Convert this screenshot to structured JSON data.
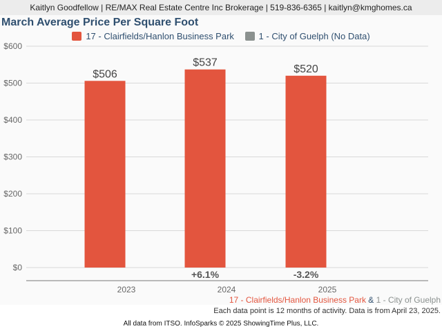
{
  "header": {
    "text": "Kaitlyn Goodfellow | RE/MAX Real Estate Centre Inc Brokerage | 519-836-6365 | kaitlyn@kmghomes.ca"
  },
  "colors": {
    "series1": "#e3553e",
    "series2": "#8b918f",
    "title": "#2f4f6f"
  },
  "footer": {
    "area1": "17 - Clairfields/Hanlon Business Park",
    "amp": " & ",
    "area2": "1 - City of Guelph",
    "note": "Each data point is 12 months of activity. Data is from April 23, 2025.",
    "credit": "All data from ITSO. InfoSparks © 2025 ShowingTime Plus, LLC."
  },
  "chart_data": {
    "type": "bar",
    "title": "March Average Price Per Square Foot",
    "categories": [
      "2023",
      "2024",
      "2025"
    ],
    "series": [
      {
        "name": "17 - Clairfields/Hanlon Business Park",
        "values": [
          506,
          537,
          520
        ],
        "labels": [
          "$506",
          "$537",
          "$520"
        ]
      },
      {
        "name": "1 - City of Guelph (No Data)",
        "values": [
          null,
          null,
          null
        ]
      }
    ],
    "changes": [
      "",
      "+6.1%",
      "-3.2%"
    ],
    "yticks": [
      0,
      100,
      200,
      300,
      400,
      500,
      600
    ],
    "ytick_labels": [
      "$0",
      "$100",
      "$200",
      "$300",
      "$400",
      "$500",
      "$600"
    ],
    "ylim": [
      0,
      600
    ],
    "xlabel": "",
    "ylabel": "",
    "grid": true,
    "legend": "top-center"
  }
}
